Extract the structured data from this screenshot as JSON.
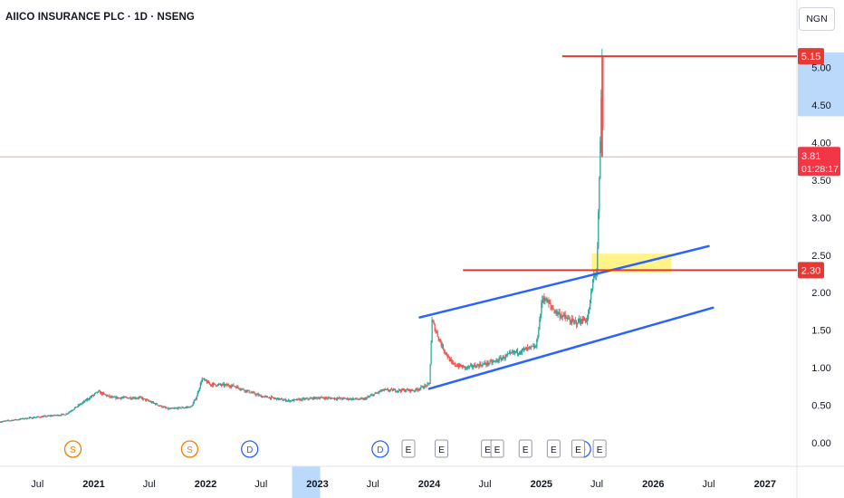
{
  "header": {
    "title": "AIICO INSURANCE PLC · 1D · NSENG",
    "currency": "NGN"
  },
  "colors": {
    "up": "#26a69a",
    "down": "#ef5350",
    "resistance_line": "#e53935",
    "channel_line": "#2962ff",
    "zone_fill": "#fff176",
    "last_price_badge": "#f23645",
    "axis_text": "#131722",
    "pane_separator": "#e0e3eb"
  },
  "chart_data": {
    "type": "candlestick",
    "y_axis": {
      "min": 0,
      "max": 5.2,
      "ticks": [
        "0.00",
        "0.50",
        "1.00",
        "1.50",
        "2.00",
        "2.50",
        "3.00",
        "3.50",
        "4.00",
        "4.50",
        "5.00"
      ],
      "ticks_values": [
        0,
        0.5,
        1,
        1.5,
        2,
        2.5,
        3,
        3.5,
        4,
        4.5,
        5
      ]
    },
    "x_axis": {
      "start": "2020-03-01",
      "end": "2027-04-15",
      "ticks": [
        {
          "label": "Jul",
          "date": "2020-07-01",
          "bold": false
        },
        {
          "label": "2021",
          "date": "2021-01-01",
          "bold": true
        },
        {
          "label": "Jul",
          "date": "2021-07-01",
          "bold": false
        },
        {
          "label": "2022",
          "date": "2022-01-01",
          "bold": true
        },
        {
          "label": "Jul",
          "date": "2022-07-01",
          "bold": false
        },
        {
          "label": "2023",
          "date": "2023-01-01",
          "bold": true,
          "highlight": true
        },
        {
          "label": "Jul",
          "date": "2023-07-01",
          "bold": false
        },
        {
          "label": "2024",
          "date": "2024-01-01",
          "bold": true
        },
        {
          "label": "Jul",
          "date": "2024-07-01",
          "bold": false
        },
        {
          "label": "2025",
          "date": "2025-01-01",
          "bold": true
        },
        {
          "label": "Jul",
          "date": "2025-07-01",
          "bold": false
        },
        {
          "label": "2026",
          "date": "2026-01-01",
          "bold": true
        },
        {
          "label": "Jul",
          "date": "2026-07-01",
          "bold": false
        },
        {
          "label": "2027",
          "date": "2027-01-01",
          "bold": true
        }
      ]
    },
    "price_path": [
      [
        "2020-03-01",
        0.28
      ],
      [
        "2020-06-01",
        0.33
      ],
      [
        "2020-10-01",
        0.38
      ],
      [
        "2020-12-01",
        0.55
      ],
      [
        "2021-01-15",
        0.68
      ],
      [
        "2021-03-01",
        0.6
      ],
      [
        "2021-06-01",
        0.6
      ],
      [
        "2021-09-01",
        0.45
      ],
      [
        "2021-11-15",
        0.48
      ],
      [
        "2021-12-01",
        0.6
      ],
      [
        "2021-12-20",
        0.85
      ],
      [
        "2022-01-15",
        0.78
      ],
      [
        "2022-04-01",
        0.76
      ],
      [
        "2022-07-01",
        0.62
      ],
      [
        "2022-10-01",
        0.56
      ],
      [
        "2023-01-01",
        0.6
      ],
      [
        "2023-06-01",
        0.58
      ],
      [
        "2023-08-01",
        0.7
      ],
      [
        "2023-11-15",
        0.7
      ],
      [
        "2024-01-01",
        0.78
      ],
      [
        "2024-01-10",
        1.62
      ],
      [
        "2024-02-10",
        1.3
      ],
      [
        "2024-03-15",
        1.05
      ],
      [
        "2024-05-01",
        1.0
      ],
      [
        "2024-08-01",
        1.08
      ],
      [
        "2024-10-01",
        1.2
      ],
      [
        "2024-12-15",
        1.28
      ],
      [
        "2025-01-05",
        1.95
      ],
      [
        "2025-02-15",
        1.75
      ],
      [
        "2025-04-15",
        1.6
      ],
      [
        "2025-06-01",
        1.65
      ],
      [
        "2025-06-20",
        2.2
      ],
      [
        "2025-07-01",
        2.3
      ],
      [
        "2025-07-10",
        3.6
      ],
      [
        "2025-07-18",
        5.1
      ],
      [
        "2025-07-22",
        3.81
      ]
    ],
    "last_price": 3.81,
    "last_price_label": "3.81",
    "countdown": "01:28:17",
    "resistance_lines": [
      {
        "price": 5.15,
        "label": "5.15",
        "start": "2025-03-10"
      },
      {
        "price": 2.3,
        "label": "2.30",
        "start": "2024-04-20"
      }
    ],
    "channel": {
      "upper": [
        [
          "2023-12-01",
          1.67
        ],
        [
          "2026-07-01",
          2.62
        ]
      ],
      "lower": [
        [
          "2024-01-01",
          0.72
        ],
        [
          "2026-07-15",
          1.8
        ]
      ]
    },
    "zone": {
      "from": "2025-06-15",
      "to": "2026-03-01",
      "low": 2.27,
      "high": 2.52
    },
    "axis_highlight_range": {
      "low": 4.35,
      "high": 5.2
    },
    "events": [
      {
        "type": "S",
        "date": "2020-10-25"
      },
      {
        "type": "S",
        "date": "2021-11-10"
      },
      {
        "type": "D",
        "date": "2022-05-25"
      },
      {
        "type": "D",
        "date": "2023-07-25"
      },
      {
        "type": "E",
        "date": "2023-10-25"
      },
      {
        "type": "E",
        "date": "2024-02-10"
      },
      {
        "type": "E",
        "date": "2024-07-10"
      },
      {
        "type": "E",
        "date": "2024-08-10"
      },
      {
        "type": "E",
        "date": "2024-11-10"
      },
      {
        "type": "E",
        "date": "2025-02-10"
      },
      {
        "type": "D",
        "date": "2025-05-15"
      },
      {
        "type": "E",
        "date": "2025-05-01"
      },
      {
        "type": "E",
        "date": "2025-07-10"
      }
    ]
  }
}
